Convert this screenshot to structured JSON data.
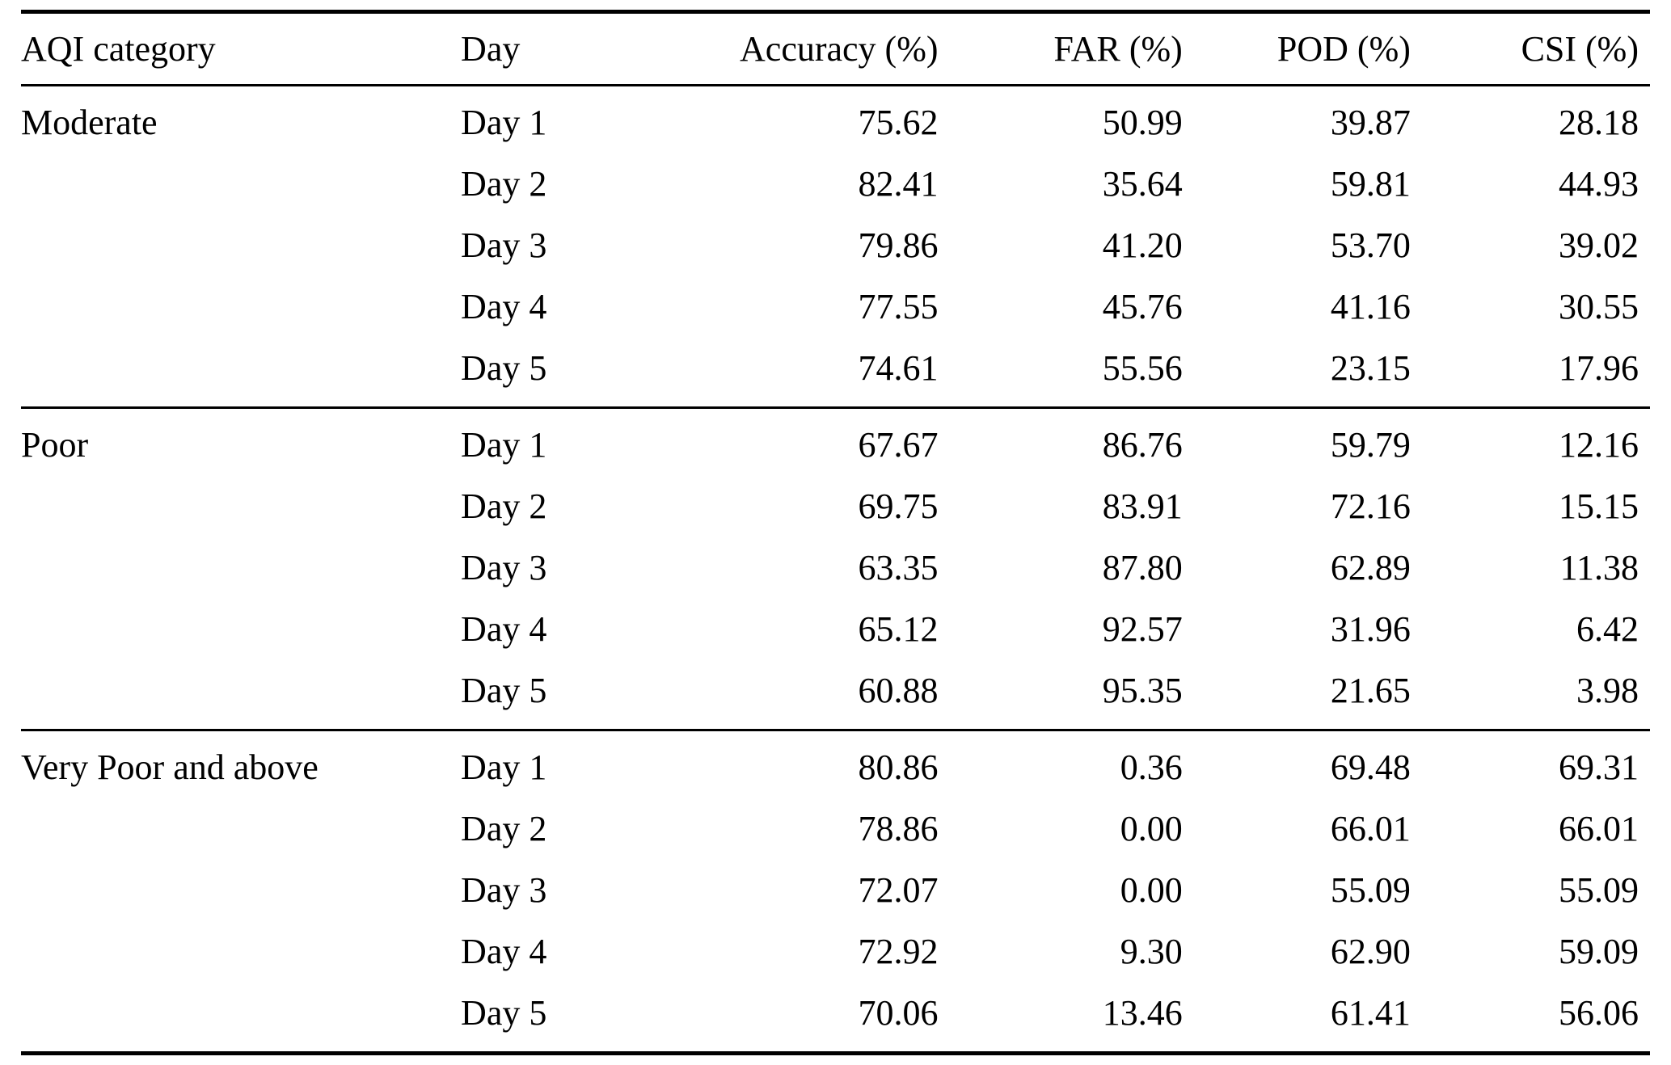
{
  "colors": {
    "background": "#ffffff",
    "text": "#000000",
    "rule": "#000000"
  },
  "chart_data": {
    "type": "table",
    "columns": [
      "AQI category",
      "Day",
      "Accuracy (%)",
      "FAR (%)",
      "POD (%)",
      "CSI (%)"
    ],
    "groups": [
      {
        "category": "Moderate",
        "rows": [
          [
            "Day 1",
            "75.62",
            "50.99",
            "39.87",
            "28.18"
          ],
          [
            "Day 2",
            "82.41",
            "35.64",
            "59.81",
            "44.93"
          ],
          [
            "Day 3",
            "79.86",
            "41.20",
            "53.70",
            "39.02"
          ],
          [
            "Day 4",
            "77.55",
            "45.76",
            "41.16",
            "30.55"
          ],
          [
            "Day 5",
            "74.61",
            "55.56",
            "23.15",
            "17.96"
          ]
        ]
      },
      {
        "category": "Poor",
        "rows": [
          [
            "Day 1",
            "67.67",
            "86.76",
            "59.79",
            "12.16"
          ],
          [
            "Day 2",
            "69.75",
            "83.91",
            "72.16",
            "15.15"
          ],
          [
            "Day 3",
            "63.35",
            "87.80",
            "62.89",
            "11.38"
          ],
          [
            "Day 4",
            "65.12",
            "92.57",
            "31.96",
            "6.42"
          ],
          [
            "Day 5",
            "60.88",
            "95.35",
            "21.65",
            "3.98"
          ]
        ]
      },
      {
        "category": "Very Poor and above",
        "rows": [
          [
            "Day 1",
            "80.86",
            "0.36",
            "69.48",
            "69.31"
          ],
          [
            "Day 2",
            "78.86",
            "0.00",
            "66.01",
            "66.01"
          ],
          [
            "Day 3",
            "72.07",
            "0.00",
            "55.09",
            "55.09"
          ],
          [
            "Day 4",
            "72.92",
            "9.30",
            "62.90",
            "59.09"
          ],
          [
            "Day 5",
            "70.06",
            "13.46",
            "61.41",
            "56.06"
          ]
        ]
      }
    ]
  }
}
